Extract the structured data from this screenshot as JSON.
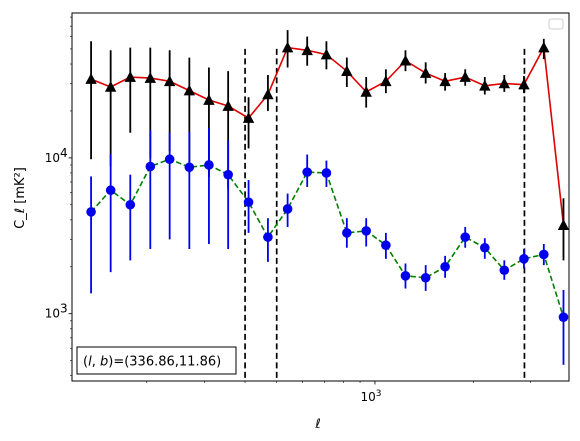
{
  "chart_data": {
    "type": "line",
    "xscale": "log",
    "yscale": "log",
    "xlabel": "ℓ",
    "ylabel": "C_ℓ  [mK²]",
    "xlim": [
      118,
      3930
    ],
    "ylim": [
      370,
      85000
    ],
    "x_tick_labels": [
      {
        "value": 1000,
        "base": "10",
        "exp": "3"
      }
    ],
    "y_tick_labels": [
      {
        "value": 1000,
        "base": "10",
        "exp": "3"
      },
      {
        "value": 10000,
        "base": "10",
        "exp": "4"
      }
    ],
    "grid": false,
    "legend": {
      "placement": "top-right",
      "entries": []
    },
    "annotation": "(l, b)=(336.86,11.86)",
    "annotation_parts": {
      "l": "l",
      "b": "b",
      "coords": "=(336.86,11.86)"
    },
    "vlines": [
      400,
      500,
      2870
    ],
    "series": [
      {
        "marker": "triangle",
        "marker_color": "#000000",
        "line_color": "#e00000",
        "line_style": "solid",
        "errorbar_color": "#000000",
        "points": [
          {
            "x": 135,
            "y": 32000,
            "lo": 9800,
            "hi": 56000
          },
          {
            "x": 155,
            "y": 28500,
            "lo": 8800,
            "hi": 49000
          },
          {
            "x": 178,
            "y": 33000,
            "lo": 14500,
            "hi": 51000
          },
          {
            "x": 205,
            "y": 32500,
            "lo": 10000,
            "hi": 51000
          },
          {
            "x": 235,
            "y": 31000,
            "lo": 11000,
            "hi": 49000
          },
          {
            "x": 270,
            "y": 27000,
            "lo": 8000,
            "hi": 44000
          },
          {
            "x": 310,
            "y": 23500,
            "lo": 7500,
            "hi": 38000
          },
          {
            "x": 355,
            "y": 21500,
            "lo": 6300,
            "hi": 36000
          },
          {
            "x": 410,
            "y": 18000,
            "lo": 11500,
            "hi": 24500
          },
          {
            "x": 470,
            "y": 25500,
            "lo": 20000,
            "hi": 34000
          },
          {
            "x": 540,
            "y": 51000,
            "lo": 38000,
            "hi": 66000
          },
          {
            "x": 620,
            "y": 49000,
            "lo": 39000,
            "hi": 60000
          },
          {
            "x": 710,
            "y": 46000,
            "lo": 37000,
            "hi": 56000
          },
          {
            "x": 820,
            "y": 36000,
            "lo": 28500,
            "hi": 44000
          },
          {
            "x": 940,
            "y": 26500,
            "lo": 21000,
            "hi": 33000
          },
          {
            "x": 1080,
            "y": 31000,
            "lo": 26000,
            "hi": 37000
          },
          {
            "x": 1240,
            "y": 42000,
            "lo": 36000,
            "hi": 49000
          },
          {
            "x": 1430,
            "y": 35000,
            "lo": 30000,
            "hi": 41000
          },
          {
            "x": 1640,
            "y": 31000,
            "lo": 27000,
            "hi": 35000
          },
          {
            "x": 1890,
            "y": 33000,
            "lo": 29000,
            "hi": 37000
          },
          {
            "x": 2170,
            "y": 29000,
            "lo": 25500,
            "hi": 33000
          },
          {
            "x": 2490,
            "y": 30000,
            "lo": 26500,
            "hi": 34000
          },
          {
            "x": 2860,
            "y": 29500,
            "lo": 26000,
            "hi": 33500
          },
          {
            "x": 3290,
            "y": 51000,
            "lo": 43000,
            "hi": 58000
          },
          {
            "x": 3780,
            "y": 3700,
            "lo": 2200,
            "hi": 5500
          }
        ]
      },
      {
        "marker": "circle",
        "marker_color": "#0000ee",
        "line_color": "#008000",
        "line_style": "dashed",
        "errorbar_color": "#0000ee",
        "points": [
          {
            "x": 135,
            "y": 4500,
            "lo": 1350,
            "hi": 7600
          },
          {
            "x": 155,
            "y": 6200,
            "lo": 1850,
            "hi": 10600
          },
          {
            "x": 178,
            "y": 5000,
            "lo": 2200,
            "hi": 7800
          },
          {
            "x": 205,
            "y": 8800,
            "lo": 2600,
            "hi": 15000
          },
          {
            "x": 235,
            "y": 9800,
            "lo": 3000,
            "hi": 14500
          },
          {
            "x": 270,
            "y": 8700,
            "lo": 2600,
            "hi": 14700
          },
          {
            "x": 310,
            "y": 9000,
            "lo": 2800,
            "hi": 15500
          },
          {
            "x": 355,
            "y": 7800,
            "lo": 2600,
            "hi": 13000
          },
          {
            "x": 410,
            "y": 5200,
            "lo": 3300,
            "hi": 7200
          },
          {
            "x": 470,
            "y": 3100,
            "lo": 2150,
            "hi": 4100
          },
          {
            "x": 540,
            "y": 4700,
            "lo": 3600,
            "hi": 5900
          },
          {
            "x": 620,
            "y": 8100,
            "lo": 6500,
            "hi": 10500
          },
          {
            "x": 710,
            "y": 8000,
            "lo": 6500,
            "hi": 9600
          },
          {
            "x": 820,
            "y": 3300,
            "lo": 2650,
            "hi": 4100
          },
          {
            "x": 940,
            "y": 3400,
            "lo": 2700,
            "hi": 4100
          },
          {
            "x": 1080,
            "y": 2750,
            "lo": 2250,
            "hi": 3300
          },
          {
            "x": 1240,
            "y": 1750,
            "lo": 1450,
            "hi": 2100
          },
          {
            "x": 1430,
            "y": 1700,
            "lo": 1400,
            "hi": 2050
          },
          {
            "x": 1640,
            "y": 2000,
            "lo": 1700,
            "hi": 2350
          },
          {
            "x": 1890,
            "y": 3100,
            "lo": 2650,
            "hi": 3600
          },
          {
            "x": 2170,
            "y": 2650,
            "lo": 2250,
            "hi": 3050
          },
          {
            "x": 2490,
            "y": 1900,
            "lo": 1650,
            "hi": 2200
          },
          {
            "x": 2860,
            "y": 2250,
            "lo": 1950,
            "hi": 2600
          },
          {
            "x": 3290,
            "y": 2400,
            "lo": 2050,
            "hi": 2800
          },
          {
            "x": 3780,
            "y": 950,
            "lo": 470,
            "hi": 1420
          }
        ]
      }
    ]
  }
}
